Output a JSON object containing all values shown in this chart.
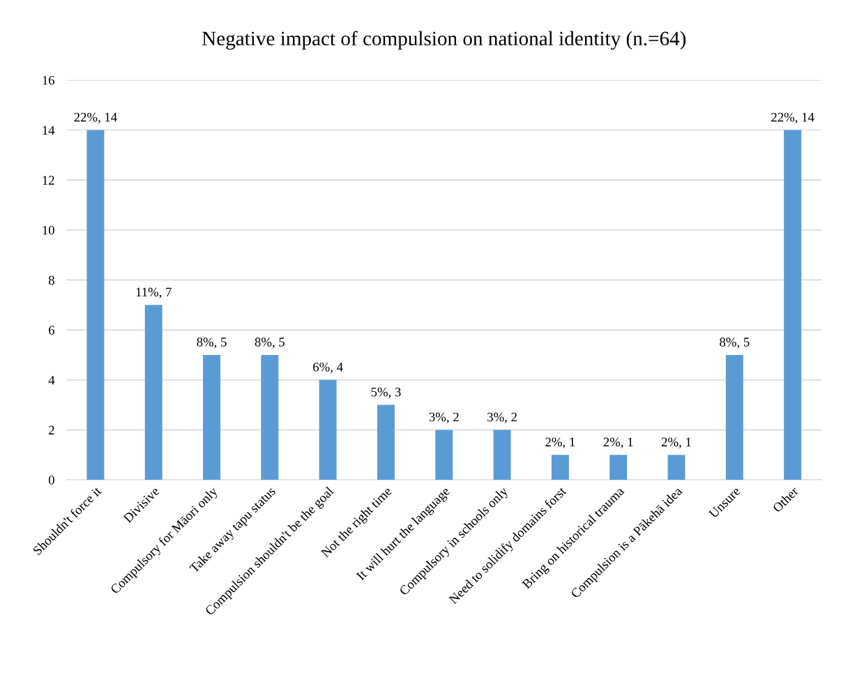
{
  "chart_data": {
    "type": "bar",
    "title": "Negative impact of compulsion on national identity (n.=64)",
    "categories": [
      "Shouldn't force it",
      "Divisive",
      "Compulsory for Māori only",
      "Take away tapu status",
      "Compulsion shouldn't be the goal",
      "Not the right time",
      "It will hurt the language",
      "Compulsory in schools only",
      "Need to solidify domains forst",
      "Bring on historical trauma",
      "Compulsion is a Pākehā idea",
      "Unsure",
      "Other"
    ],
    "values": [
      14,
      7,
      5,
      5,
      4,
      3,
      2,
      2,
      1,
      1,
      1,
      5,
      14
    ],
    "value_labels": [
      "22%, 14",
      "11%, 7",
      "8%, 5",
      "8%, 5",
      "6%, 4",
      "5%, 3",
      "3%, 2",
      "3%, 2",
      "2%, 1",
      "2%, 1",
      "2%, 1",
      "8%, 5",
      "22%, 14"
    ],
    "color": "#5b9bd5",
    "ylim": [
      0,
      16
    ],
    "yticks": [
      0,
      2,
      4,
      6,
      8,
      10,
      12,
      14,
      16
    ],
    "grid": "y",
    "legend": false
  }
}
